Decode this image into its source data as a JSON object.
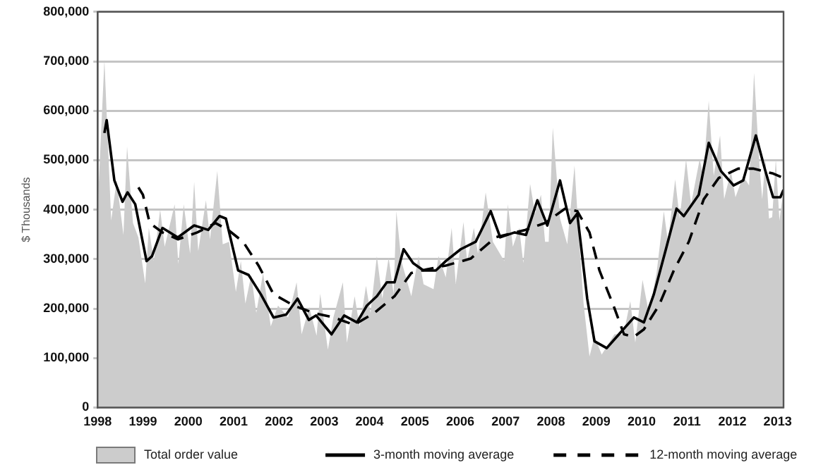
{
  "chart_data": {
    "type": "line",
    "ylabel": "$ Thousands",
    "xlim": [
      1998,
      2013.13
    ],
    "xticks": [
      1998,
      1999,
      2000,
      2001,
      2002,
      2003,
      2004,
      2005,
      2006,
      2007,
      2008,
      2009,
      2010,
      2011,
      2012,
      2013
    ],
    "ylim": [
      0,
      800000
    ],
    "yticks": [
      {
        "value": 0,
        "label": "0"
      },
      {
        "value": 100000,
        "label": "100,000"
      },
      {
        "value": 200000,
        "label": "200,000"
      },
      {
        "value": 300000,
        "label": "300,000"
      },
      {
        "value": 400000,
        "label": "400,000"
      },
      {
        "value": 500000,
        "label": "500,000"
      },
      {
        "value": 600000,
        "label": "600,000"
      },
      {
        "value": 700000,
        "label": "700,000"
      },
      {
        "value": 800000,
        "label": "800,000"
      }
    ],
    "grid": "y",
    "legend": "bottom",
    "series": [
      {
        "name": "Total order value",
        "type": "area",
        "color": "#cccccc",
        "line_style": "solid",
        "x": [
          1998,
          1998.15,
          1998.3,
          1998.42,
          1998.57,
          1998.65,
          1998.78,
          1998.9,
          1999.05,
          1999.13,
          1999.24,
          1999.38,
          1999.48,
          1999.7,
          1999.78,
          1999.9,
          2000.04,
          2000.13,
          2000.22,
          2000.39,
          2000.48,
          2000.64,
          2000.76,
          2000.9,
          2001.05,
          2001.16,
          2001.26,
          2001.39,
          2001.5,
          2001.65,
          2001.82,
          2001.98,
          2002.2,
          2002.39,
          2002.5,
          2002.67,
          2002.83,
          2002.91,
          2003.08,
          2003.2,
          2003.41,
          2003.5,
          2003.67,
          2003.78,
          2003.92,
          2004.02,
          2004.16,
          2004.28,
          2004.42,
          2004.53,
          2004.59,
          2004.7,
          2004.92,
          2005.08,
          2005.19,
          2005.41,
          2005.52,
          2005.68,
          2005.81,
          2005.9,
          2006.07,
          2006.15,
          2006.3,
          2006.39,
          2006.56,
          2006.72,
          2006.97,
          2007.05,
          2007.16,
          2007.3,
          2007.39,
          2007.54,
          2007.65,
          2007.78,
          2007.87,
          2007.95,
          2008.04,
          2008.2,
          2008.36,
          2008.52,
          2008.61,
          2008.72,
          2008.85,
          2008.96,
          2009.12,
          2009.4,
          2009.6,
          2009.75,
          2009.86,
          2010.02,
          2010.16,
          2010.33,
          2010.49,
          2010.58,
          2010.74,
          2010.84,
          2010.98,
          2011.09,
          2011.28,
          2011.36,
          2011.48,
          2011.59,
          2011.73,
          2011.82,
          2011.97,
          2012.07,
          2012.24,
          2012.37,
          2012.48,
          2012.6,
          2012.66,
          2012.73,
          2012.81,
          2012.88,
          2012.96,
          2013.04,
          2013.13
        ],
        "values": [
          400000,
          703000,
          378000,
          459000,
          349000,
          528000,
          373000,
          344000,
          251000,
          363000,
          296000,
          400000,
          325000,
          411000,
          290000,
          411000,
          311000,
          456000,
          316000,
          419000,
          340000,
          478000,
          330000,
          335000,
          234000,
          296000,
          210000,
          268000,
          191000,
          272000,
          164000,
          206000,
          182000,
          253000,
          148000,
          203000,
          145000,
          230000,
          117000,
          182000,
          253000,
          131000,
          225000,
          163000,
          246000,
          191000,
          306000,
          220000,
          303000,
          229000,
          397000,
          296000,
          225000,
          306000,
          249000,
          239000,
          306000,
          263000,
          363000,
          250000,
          375000,
          296000,
          363000,
          311000,
          435000,
          335000,
          296000,
          411000,
          325000,
          363000,
          292000,
          452000,
          392000,
          430000,
          335000,
          335000,
          566000,
          382000,
          330000,
          489000,
          354000,
          210000,
          103000,
          143000,
          107000,
          148000,
          148000,
          215000,
          131000,
          258000,
          191000,
          272000,
          397000,
          335000,
          461000,
          382000,
          502000,
          411000,
          502000,
          468000,
          620000,
          468000,
          550000,
          421000,
          478000,
          425000,
          468000,
          449000,
          677000,
          488000,
          421000,
          502000,
          382000,
          385000,
          502000,
          378000,
          440000
        ]
      },
      {
        "name": "3-month moving average",
        "type": "line",
        "color": "#000000",
        "line_style": "solid",
        "x": [
          1998.15,
          1998.2,
          1998.37,
          1998.55,
          1998.66,
          1998.83,
          1999.08,
          1999.2,
          1999.43,
          1999.77,
          2000.13,
          2000.44,
          2000.69,
          2000.83,
          2001,
          2001.1,
          2001.33,
          2001.6,
          2001.88,
          2002.16,
          2002.41,
          2002.66,
          2002.82,
          2003.16,
          2003.44,
          2003.72,
          2003.94,
          2004.16,
          2004.38,
          2004.55,
          2004.75,
          2004.96,
          2005.19,
          2005.46,
          2005.68,
          2006.01,
          2006.34,
          2006.67,
          2006.88,
          2007.2,
          2007.45,
          2007.7,
          2007.92,
          2008.2,
          2008.42,
          2008.58,
          2008.8,
          2008.96,
          2009.23,
          2009.5,
          2009.83,
          2010.05,
          2010.27,
          2010.55,
          2010.77,
          2010.93,
          2011.26,
          2011.48,
          2011.75,
          2012.03,
          2012.24,
          2012.52,
          2012.73,
          2012.9,
          2013.06,
          2013.13
        ],
        "values": [
          555000,
          581000,
          459000,
          416000,
          435000,
          411000,
          296000,
          306000,
          363000,
          344000,
          368000,
          359000,
          387000,
          382000,
          316000,
          277000,
          268000,
          229000,
          182000,
          188000,
          220000,
          177000,
          186000,
          148000,
          186000,
          172000,
          206000,
          225000,
          253000,
          253000,
          320000,
          292000,
          277000,
          277000,
          296000,
          320000,
          335000,
          397000,
          344000,
          354000,
          349000,
          419000,
          368000,
          459000,
          373000,
          392000,
          220000,
          134000,
          120000,
          148000,
          182000,
          172000,
          229000,
          325000,
          402000,
          387000,
          430000,
          535000,
          478000,
          449000,
          459000,
          550000,
          478000,
          425000,
          425000,
          440000
        ]
      },
      {
        "name": "12-month moving average",
        "type": "line",
        "color": "#000000",
        "line_style": "dashed",
        "x": [
          1998.9,
          1999,
          1999.15,
          1999.43,
          1999.77,
          2000.2,
          2000.6,
          2000.88,
          2001.21,
          2001.55,
          2001.88,
          2002.33,
          2002.77,
          2003.21,
          2003.66,
          2004.1,
          2004.55,
          2004.92,
          2005.25,
          2005.68,
          2006.23,
          2006.78,
          2007.43,
          2007.87,
          2008.31,
          2008.58,
          2008.85,
          2009.07,
          2009.4,
          2009.61,
          2009.83,
          2010.05,
          2010.38,
          2010.71,
          2011.04,
          2011.37,
          2011.7,
          2012.13,
          2012.46,
          2012.9,
          2013.13
        ],
        "values": [
          445000,
          430000,
          373000,
          354000,
          340000,
          354000,
          373000,
          359000,
          335000,
          287000,
          229000,
          206000,
          191000,
          182000,
          167000,
          191000,
          225000,
          272000,
          279000,
          287000,
          301000,
          344000,
          359000,
          373000,
          402000,
          397000,
          354000,
          277000,
          201000,
          148000,
          143000,
          158000,
          206000,
          277000,
          335000,
          421000,
          464000,
          483000,
          483000,
          473000,
          464000
        ]
      }
    ]
  }
}
